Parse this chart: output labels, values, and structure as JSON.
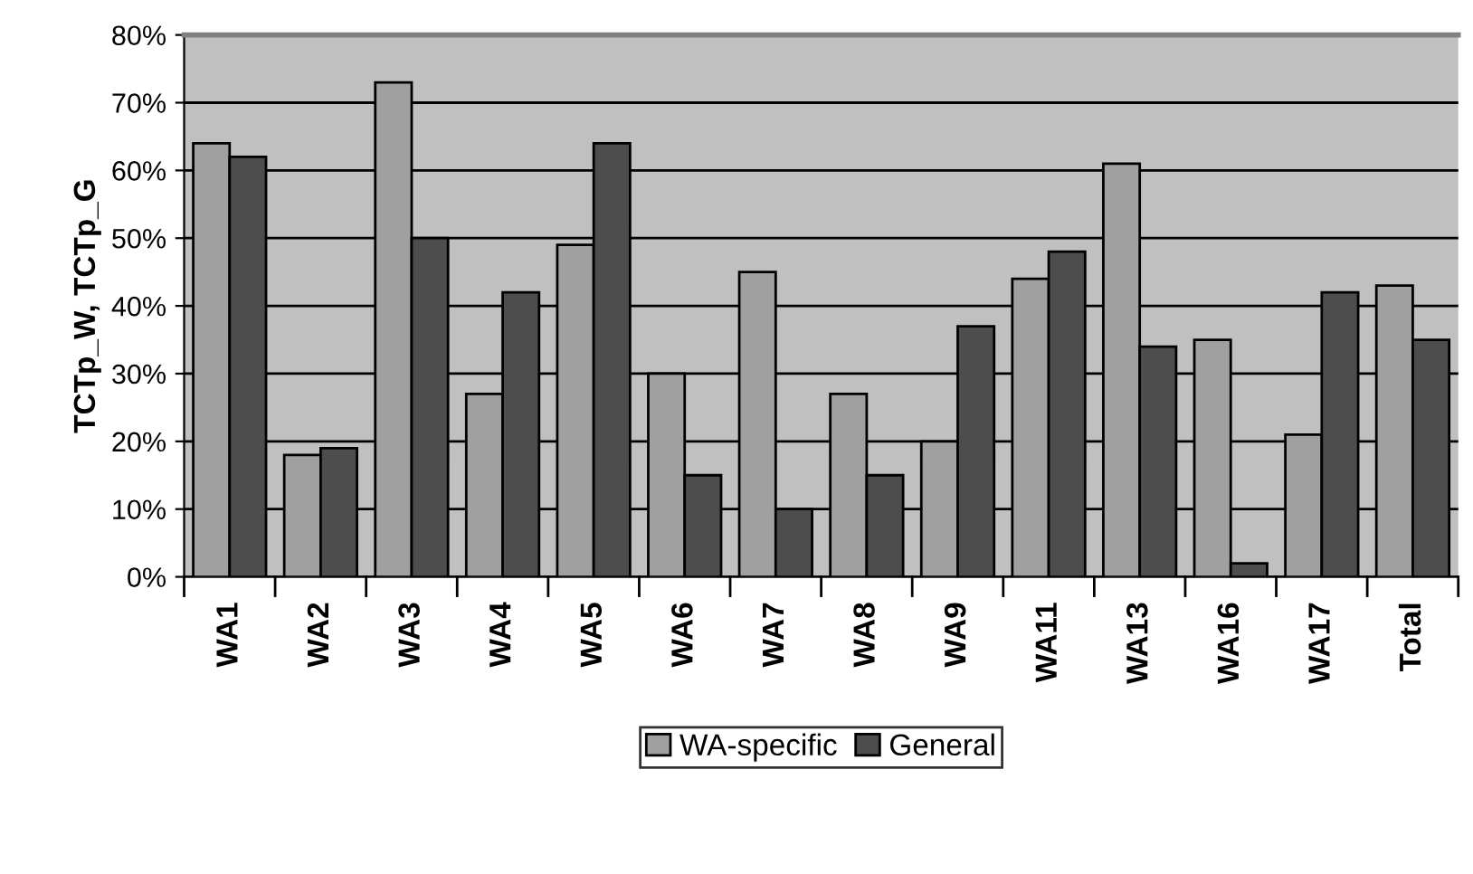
{
  "chart_data": {
    "type": "bar",
    "ylabel": "TCTp_W, TCTp_G",
    "categories": [
      "WA1",
      "WA2",
      "WA3",
      "WA4",
      "WA5",
      "WA6",
      "WA7",
      "WA8",
      "WA9",
      "WA11",
      "WA13",
      "WA16",
      "WA17",
      "Total"
    ],
    "series": [
      {
        "name": "WA-specific",
        "color": "#a0a0a0",
        "values": [
          64,
          18,
          73,
          27,
          49,
          30,
          45,
          27,
          20,
          44,
          61,
          35,
          21,
          43
        ]
      },
      {
        "name": "General",
        "color": "#4d4d4d",
        "values": [
          62,
          19,
          50,
          42,
          64,
          15,
          10,
          15,
          37,
          48,
          34,
          2,
          42,
          35
        ]
      }
    ],
    "ylim": [
      0,
      80
    ],
    "yticks": [
      {
        "value": 0,
        "label": "0%"
      },
      {
        "value": 10,
        "label": "10%"
      },
      {
        "value": 20,
        "label": "20%"
      },
      {
        "value": 30,
        "label": "30%"
      },
      {
        "value": 40,
        "label": "40%"
      },
      {
        "value": 50,
        "label": "50%"
      },
      {
        "value": 60,
        "label": "60%"
      },
      {
        "value": 70,
        "label": "70%"
      },
      {
        "value": 80,
        "label": "80%"
      }
    ],
    "grid": "y",
    "legend": "bottom"
  }
}
